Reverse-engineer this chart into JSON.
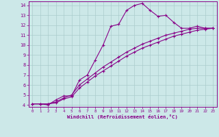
{
  "xlabel": "Windchill (Refroidissement éolien,°C)",
  "bg_color": "#cce8e8",
  "line_color": "#880088",
  "grid_color": "#aacccc",
  "xlim": [
    -0.5,
    23.5
  ],
  "ylim": [
    3.8,
    14.4
  ],
  "xticks": [
    0,
    1,
    2,
    3,
    4,
    5,
    6,
    7,
    8,
    9,
    10,
    11,
    12,
    13,
    14,
    15,
    16,
    17,
    18,
    19,
    20,
    21,
    22,
    23
  ],
  "yticks": [
    4,
    5,
    6,
    7,
    8,
    9,
    10,
    11,
    12,
    13,
    14
  ],
  "curve1_x": [
    0,
    1,
    2,
    3,
    4,
    5,
    6,
    7,
    8,
    9,
    10,
    11,
    12,
    13,
    14,
    15,
    16,
    17,
    18,
    19,
    20,
    21,
    22,
    23
  ],
  "curve1_y": [
    4.1,
    4.1,
    4.0,
    4.5,
    4.9,
    4.9,
    6.5,
    7.0,
    8.5,
    10.0,
    11.9,
    12.1,
    13.5,
    14.0,
    14.2,
    13.5,
    12.9,
    13.0,
    12.3,
    11.7,
    11.7,
    11.9,
    11.7,
    11.7
  ],
  "curve2_x": [
    0,
    1,
    2,
    3,
    4,
    5,
    6,
    7,
    8,
    9,
    10,
    11,
    12,
    13,
    14,
    15,
    16,
    17,
    18,
    19,
    20,
    21,
    22,
    23
  ],
  "curve2_y": [
    4.1,
    4.1,
    4.1,
    4.3,
    4.7,
    5.0,
    6.0,
    6.6,
    7.2,
    7.8,
    8.3,
    8.8,
    9.3,
    9.7,
    10.1,
    10.4,
    10.7,
    11.0,
    11.2,
    11.4,
    11.6,
    11.7,
    11.7,
    11.7
  ],
  "curve3_x": [
    0,
    1,
    2,
    3,
    4,
    5,
    6,
    7,
    8,
    9,
    10,
    11,
    12,
    13,
    14,
    15,
    16,
    17,
    18,
    19,
    20,
    21,
    22,
    23
  ],
  "curve3_y": [
    4.1,
    4.1,
    4.1,
    4.2,
    4.6,
    4.8,
    5.7,
    6.3,
    6.9,
    7.4,
    7.9,
    8.4,
    8.9,
    9.3,
    9.7,
    10.0,
    10.3,
    10.6,
    10.9,
    11.1,
    11.3,
    11.5,
    11.6,
    11.7
  ]
}
